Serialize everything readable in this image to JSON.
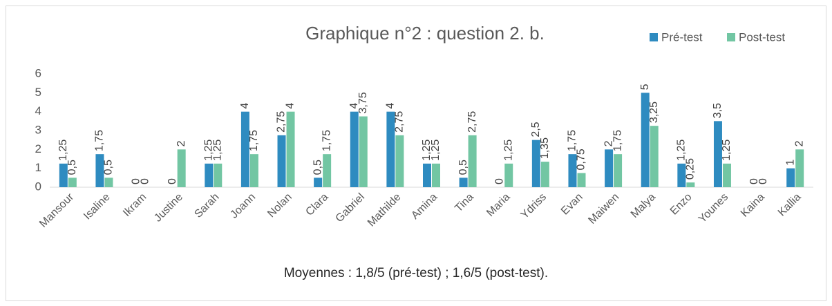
{
  "chart_data": {
    "type": "bar",
    "title": "Graphique n°2 : question 2. b.",
    "caption": "Moyennes : 1,8/5 (pré-test) ; 1,6/5 (post-test).",
    "categories": [
      "Mansour",
      "Isaline",
      "Ikram",
      "Justine",
      "Sarah",
      "Joann",
      "Nolan",
      "Clara",
      "Gabriel",
      "Mathilde",
      "Amina",
      "Tina",
      "Maria",
      "Ydriss",
      "Evan",
      "Maiwen",
      "Malya",
      "Enzo",
      "Younes",
      "Kaina",
      "Kallia"
    ],
    "series": [
      {
        "name": "Pré-test",
        "color": "#2e8bc0",
        "values": [
          1.25,
          1.75,
          0,
          0,
          1.25,
          4,
          2.75,
          0.5,
          4,
          4,
          1.25,
          0.5,
          0,
          2.5,
          1.75,
          2,
          5,
          1.25,
          3.5,
          0,
          1
        ],
        "value_labels": [
          "1,25",
          "1,75",
          "0",
          "0",
          "1,25",
          "4",
          "2,75",
          "0,5",
          "4",
          "4",
          "1,25",
          "0,5",
          "0",
          "2,5",
          "1,75",
          "2",
          "5",
          "1,25",
          "3,5",
          "0",
          "1"
        ]
      },
      {
        "name": "Post-test",
        "color": "#72c6a3",
        "values": [
          0.5,
          0.5,
          0,
          2,
          1.25,
          1.75,
          4,
          1.75,
          3.75,
          2.75,
          1.25,
          2.75,
          1.25,
          1.35,
          0.75,
          1.75,
          3.25,
          0.25,
          1.25,
          0,
          2
        ],
        "value_labels": [
          "0,5",
          "0,5",
          "0",
          "2",
          "1,25",
          "1,75",
          "4",
          "1,75",
          "3,75",
          "2,75",
          "1,25",
          "2,75",
          "1,25",
          "1,35",
          "0,75",
          "1,75",
          "3,25",
          "0,25",
          "1,25",
          "0",
          "2"
        ]
      }
    ],
    "ylim": [
      0,
      6
    ],
    "yticks": [
      0,
      1,
      2,
      3,
      4,
      5,
      6
    ],
    "grid": false,
    "legend": "top-right"
  }
}
